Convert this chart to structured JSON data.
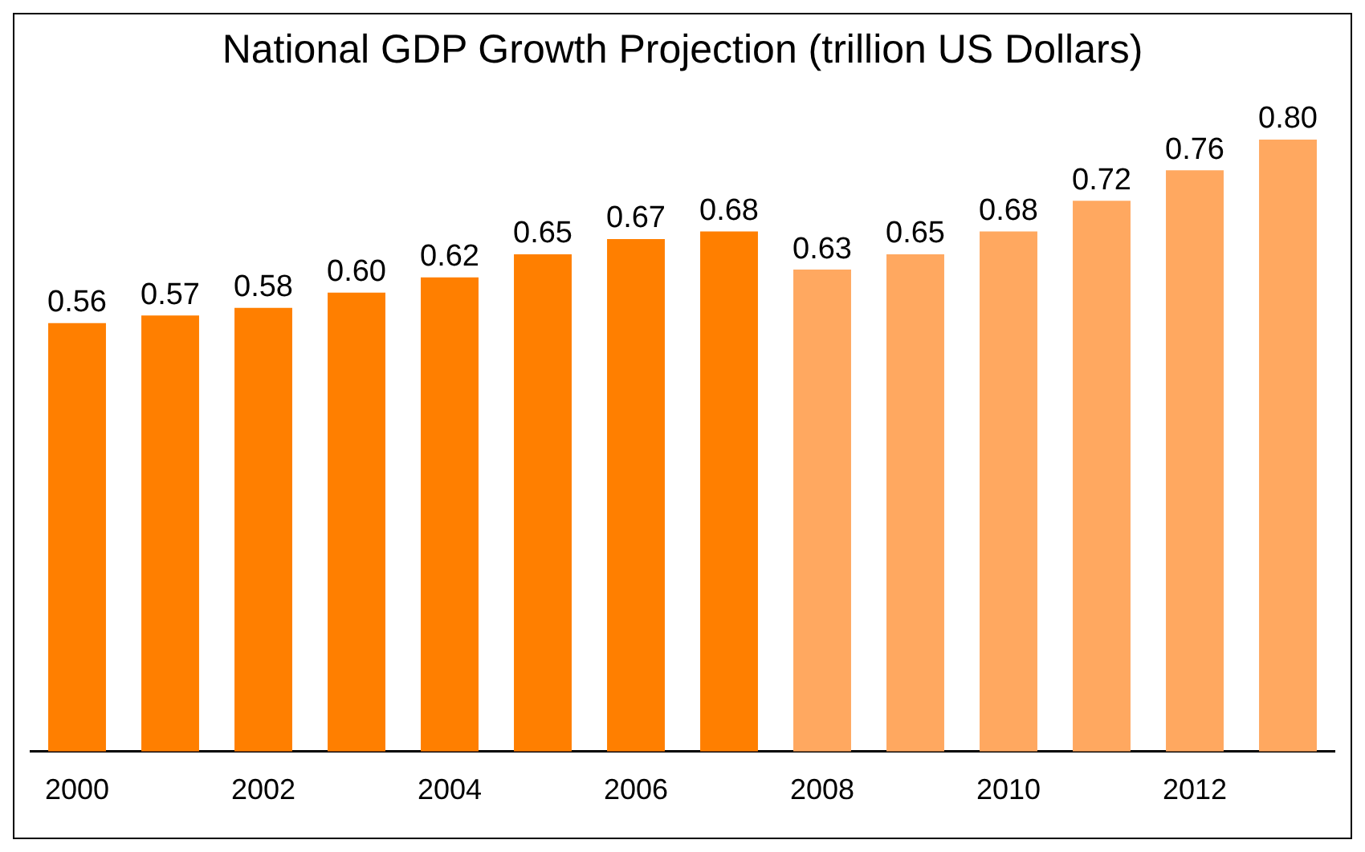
{
  "chart_data": {
    "type": "bar",
    "title": "National GDP Growth Projection (trillion US Dollars)",
    "categories": [
      "2000",
      null,
      "2002",
      null,
      "2004",
      null,
      "2006",
      null,
      "2008",
      null,
      "2010",
      null,
      "2012",
      null
    ],
    "values": [
      0.56,
      0.57,
      0.58,
      0.6,
      0.62,
      0.65,
      0.67,
      0.68,
      0.63,
      0.65,
      0.68,
      0.72,
      0.76,
      0.8
    ],
    "colors": [
      "#ff7f00",
      "#ff7f00",
      "#ff7f00",
      "#ff7f00",
      "#ff7f00",
      "#ff7f00",
      "#ff7f00",
      "#ff7f00",
      "#ffa860",
      "#ffa860",
      "#ffa860",
      "#ffa860",
      "#ffa860",
      "#ffa860"
    ],
    "value_labels": [
      "0.56",
      "0.57",
      "0.58",
      "0.60",
      "0.62",
      "0.65",
      "0.67",
      "0.68",
      "0.63",
      "0.65",
      "0.68",
      "0.72",
      "0.76",
      "0.80"
    ],
    "grid": false,
    "legend": false
  }
}
